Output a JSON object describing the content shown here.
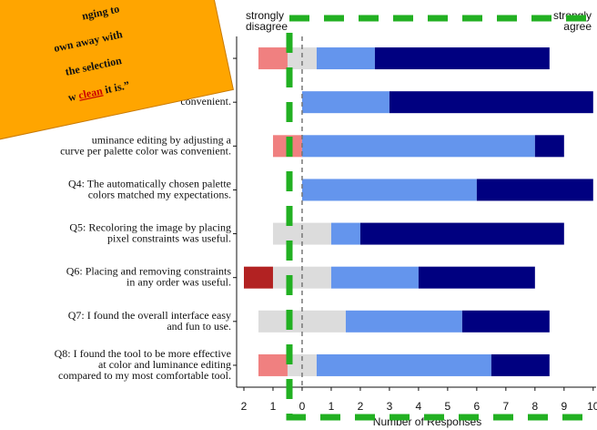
{
  "chart_data": {
    "type": "diverging-bar",
    "annotations": [
      "strongly\ndisagree",
      "strongly\nagree"
    ],
    "xlabel": "Number of Responses",
    "categories": [
      null,
      "convenient.",
      "uminance editing by adjusting a\ncurve per palette color was convenient.",
      "Q4: The automatically chosen palette\ncolors matched my expectations.",
      "Q5: Recoloring the image by placing\npixel constraints was useful.",
      "Q6: Placing and removing constraints\nin any order was useful.",
      "Q7: I found the overall interface easy\nand fun to use.",
      "Q8: I found the tool to be more effective\nat color and luminance editing\ncompared to my most comfortable tool."
    ],
    "series": [
      {
        "color": "#b22222",
        "values": [
          0,
          0,
          0,
          0,
          0,
          1,
          0,
          0
        ]
      },
      {
        "color": "#f08080",
        "values": [
          1,
          0,
          1,
          0,
          0,
          0,
          0,
          1
        ]
      },
      {
        "color": "#dcdcdc",
        "values": [
          1,
          0,
          0,
          0,
          2,
          2,
          3,
          1
        ]
      },
      {
        "color": "#6495ed",
        "values": [
          2,
          3,
          8,
          6,
          1,
          3,
          4,
          6
        ]
      },
      {
        "color": "#000080",
        "values": [
          6,
          7,
          1,
          4,
          7,
          4,
          3,
          2
        ]
      }
    ],
    "neutral_series": 2,
    "xlim": [
      -2.25,
      10.1
    ],
    "xticks": [
      {
        "value": -2,
        "label": "2"
      },
      {
        "value": -1,
        "label": "1"
      },
      0,
      1,
      2,
      3,
      4,
      5,
      6,
      7,
      8,
      9,
      10
    ],
    "sticker": {
      "color": "#ffa500",
      "lines": [
        "nging to",
        "own away with",
        "the selection",
        "w ",
        "clean",
        " it is.”"
      ],
      "highlight_color": "#cc0000"
    }
  }
}
